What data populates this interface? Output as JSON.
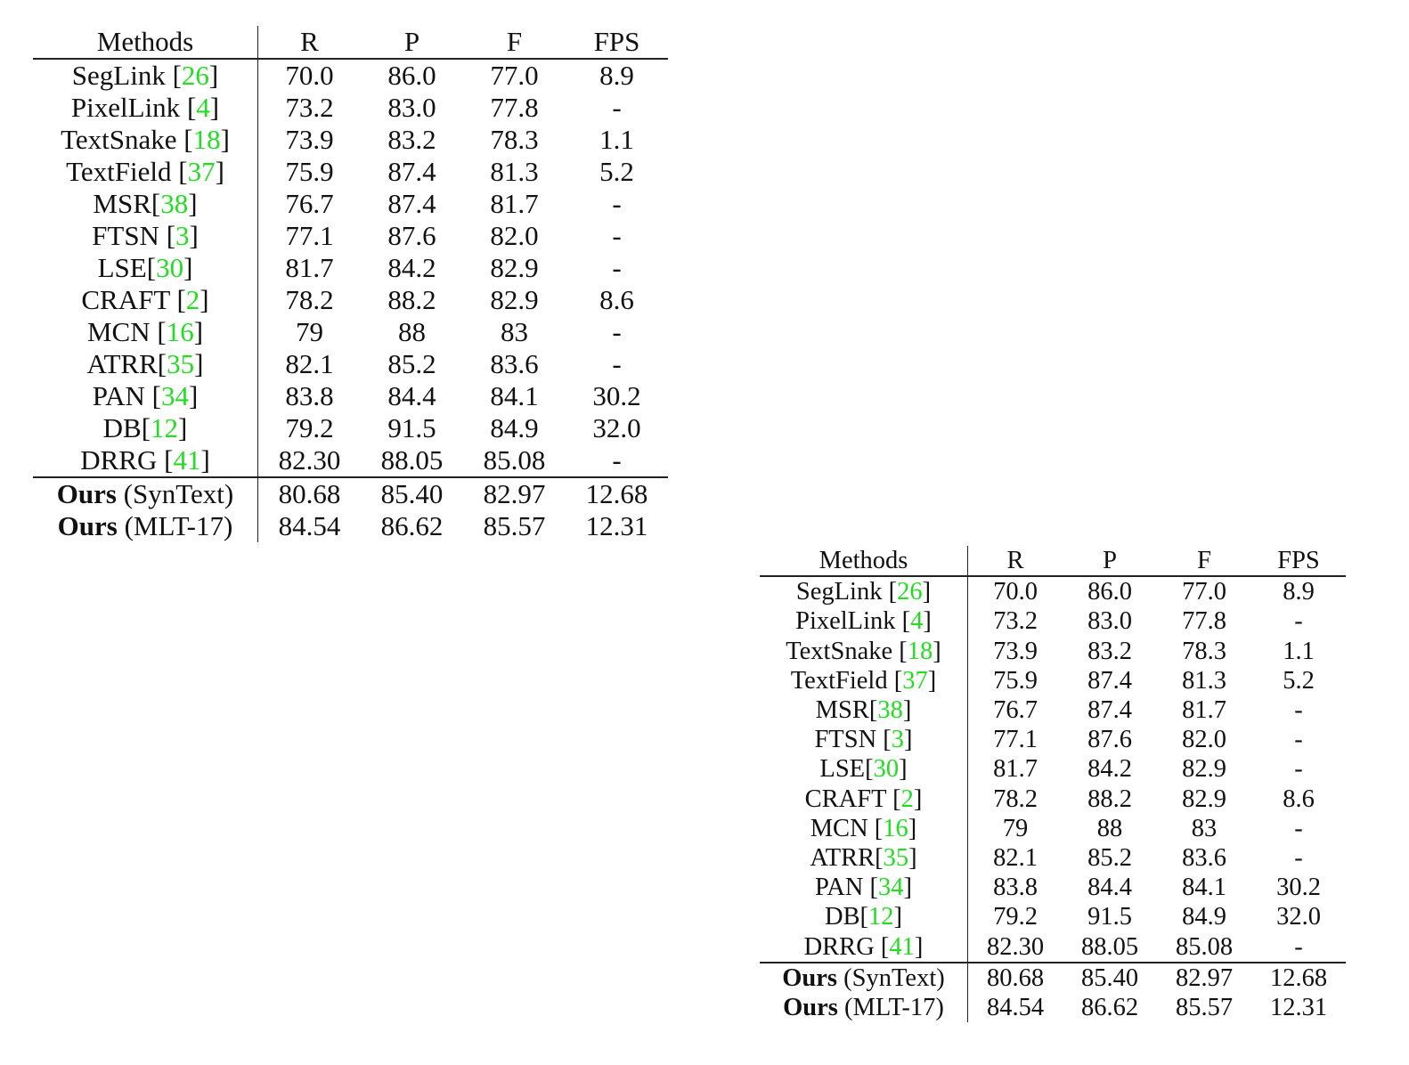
{
  "tables": [
    {
      "headers": [
        "Methods",
        "R",
        "P",
        "F",
        "FPS"
      ],
      "rows": [
        {
          "name": "SegLink",
          "sep": " ",
          "ref": "26",
          "r": "70.0",
          "p": "86.0",
          "f": "77.0",
          "fps": "8.9"
        },
        {
          "name": "PixelLink",
          "sep": " ",
          "ref": "4",
          "r": "73.2",
          "p": "83.0",
          "f": "77.8",
          "fps": "-"
        },
        {
          "name": "TextSnake",
          "sep": " ",
          "ref": "18",
          "r": "73.9",
          "p": "83.2",
          "f": "78.3",
          "fps": "1.1"
        },
        {
          "name": "TextField",
          "sep": " ",
          "ref": "37",
          "r": "75.9",
          "p": "87.4",
          "f": "81.3",
          "fps": "5.2"
        },
        {
          "name": "MSR",
          "sep": "",
          "ref": "38",
          "r": "76.7",
          "p": "87.4",
          "f": "81.7",
          "fps": "-"
        },
        {
          "name": "FTSN",
          "sep": " ",
          "ref": "3",
          "r": "77.1",
          "p": "87.6",
          "f": "82.0",
          "fps": "-"
        },
        {
          "name": "LSE",
          "sep": "",
          "ref": "30",
          "r": "81.7",
          "p": "84.2",
          "f": "82.9",
          "fps": "-"
        },
        {
          "name": "CRAFT",
          "sep": " ",
          "ref": "2",
          "r": "78.2",
          "p": "88.2",
          "f": "82.9",
          "fps": "8.6"
        },
        {
          "name": "MCN",
          "sep": " ",
          "ref": "16",
          "r": "79",
          "p": "88",
          "f": "83",
          "fps": "-"
        },
        {
          "name": "ATRR",
          "sep": "",
          "ref": "35",
          "r": "82.1",
          "p": "85.2",
          "f": "83.6",
          "fps": "-"
        },
        {
          "name": "PAN",
          "sep": " ",
          "ref": "34",
          "r": "83.8",
          "p": "84.4",
          "f": "84.1",
          "fps": "30.2"
        },
        {
          "name": "DB",
          "sep": "",
          "ref": "12",
          "r": "79.2",
          "p": "91.5",
          "f": "84.9",
          "fps": "32.0",
          "bold": [
            "p",
            "fps"
          ]
        },
        {
          "name": "DRRG",
          "sep": " ",
          "ref": "41",
          "r": "82.30",
          "p": "88.05",
          "f": "85.08",
          "fps": "-"
        }
      ],
      "ours_rows": [
        {
          "bold_label": "Ours",
          "variant": "(SynText)",
          "r": "80.68",
          "p": "85.40",
          "f": "82.97",
          "fps": "12.68",
          "bold": []
        },
        {
          "bold_label": "Ours",
          "variant": "(MLT-17)",
          "r": "84.54",
          "p": "86.62",
          "f": "85.57",
          "fps": "12.31",
          "bold": [
            "r",
            "f"
          ]
        }
      ]
    },
    {
      "headers": [
        "Methods",
        "R",
        "P",
        "F",
        "FPS"
      ],
      "rows": [
        {
          "name": "SegLink",
          "sep": " ",
          "ref": "26",
          "r": "70.0",
          "p": "86.0",
          "f": "77.0",
          "fps": "8.9"
        },
        {
          "name": "PixelLink",
          "sep": " ",
          "ref": "4",
          "r": "73.2",
          "p": "83.0",
          "f": "77.8",
          "fps": "-"
        },
        {
          "name": "TextSnake",
          "sep": " ",
          "ref": "18",
          "r": "73.9",
          "p": "83.2",
          "f": "78.3",
          "fps": "1.1"
        },
        {
          "name": "TextField",
          "sep": " ",
          "ref": "37",
          "r": "75.9",
          "p": "87.4",
          "f": "81.3",
          "fps": "5.2"
        },
        {
          "name": "MSR",
          "sep": "",
          "ref": "38",
          "r": "76.7",
          "p": "87.4",
          "f": "81.7",
          "fps": "-"
        },
        {
          "name": "FTSN",
          "sep": " ",
          "ref": "3",
          "r": "77.1",
          "p": "87.6",
          "f": "82.0",
          "fps": "-"
        },
        {
          "name": "LSE",
          "sep": "",
          "ref": "30",
          "r": "81.7",
          "p": "84.2",
          "f": "82.9",
          "fps": "-"
        },
        {
          "name": "CRAFT",
          "sep": " ",
          "ref": "2",
          "r": "78.2",
          "p": "88.2",
          "f": "82.9",
          "fps": "8.6"
        },
        {
          "name": "MCN",
          "sep": " ",
          "ref": "16",
          "r": "79",
          "p": "88",
          "f": "83",
          "fps": "-"
        },
        {
          "name": "ATRR",
          "sep": "",
          "ref": "35",
          "r": "82.1",
          "p": "85.2",
          "f": "83.6",
          "fps": "-"
        },
        {
          "name": "PAN",
          "sep": " ",
          "ref": "34",
          "r": "83.8",
          "p": "84.4",
          "f": "84.1",
          "fps": "30.2"
        },
        {
          "name": "DB",
          "sep": "",
          "ref": "12",
          "r": "79.2",
          "p": "91.5",
          "f": "84.9",
          "fps": "32.0",
          "bold": [
            "p",
            "fps"
          ]
        },
        {
          "name": "DRRG",
          "sep": " ",
          "ref": "41",
          "r": "82.30",
          "p": "88.05",
          "f": "85.08",
          "fps": "-"
        }
      ],
      "ours_rows": [
        {
          "bold_label": "Ours",
          "variant": "(SynText)",
          "r": "80.68",
          "p": "85.40",
          "f": "82.97",
          "fps": "12.68",
          "bold": []
        },
        {
          "bold_label": "Ours",
          "variant": "(MLT-17)",
          "r": "84.54",
          "p": "86.62",
          "f": "85.57",
          "fps": "12.31",
          "bold": [
            "r",
            "f"
          ]
        }
      ]
    }
  ],
  "colors": {
    "reference_link": "#22dd22",
    "text": "#111111",
    "rule": "#222222"
  }
}
